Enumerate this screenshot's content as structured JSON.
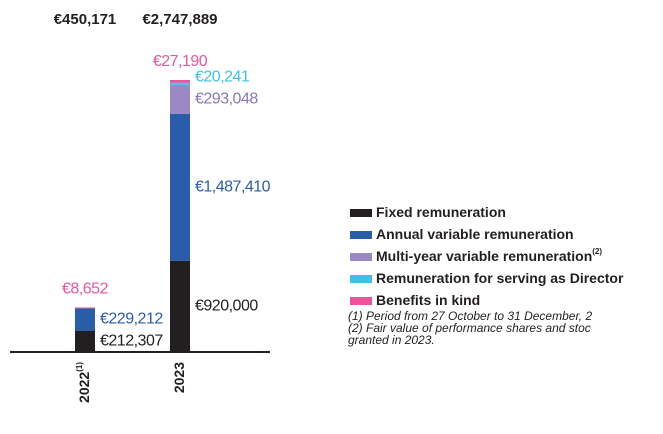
{
  "chart_data": {
    "type": "stacked_bar",
    "categories": [
      "2022",
      "2023"
    ],
    "category_notes": [
      "(1)",
      null
    ],
    "totals": [
      450171,
      2747889
    ],
    "total_labels": [
      "€450,171",
      "€2,747,889"
    ],
    "series": [
      {
        "name": "Fixed remuneration",
        "color": "#231f20",
        "label_color": "#231f20",
        "values": [
          212307,
          920000
        ],
        "value_labels": [
          "€212,307",
          "€920,000"
        ]
      },
      {
        "name": "Annual variable remuneration",
        "color": "#2a5caa",
        "label_color": "#2a5caa",
        "values": [
          229212,
          1487410
        ],
        "value_labels": [
          "€229,212",
          "€1,487,410"
        ]
      },
      {
        "name": "Multi-year variable remuneration",
        "name_note": "(2)",
        "color": "#9b88c4",
        "label_color": "#8a78b8",
        "values": [
          0,
          293048
        ],
        "value_labels": [
          null,
          "€293,048"
        ]
      },
      {
        "name": "Remuneration for serving as Director",
        "color": "#3fc0e8",
        "label_color": "#3fc0e8",
        "values": [
          0,
          20241
        ],
        "value_labels": [
          null,
          "€20,241"
        ]
      },
      {
        "name": "Benefits in kind",
        "color": "#e8559e",
        "label_color": "#e8559e",
        "values": [
          8652,
          27190
        ],
        "value_labels": [
          "€8,652",
          "€27,190"
        ]
      }
    ],
    "footnotes": [
      "(1) Period from 27 October to 31 December, 2",
      "(2) Fair value of performance shares and stoc",
      "granted in 2023."
    ]
  }
}
